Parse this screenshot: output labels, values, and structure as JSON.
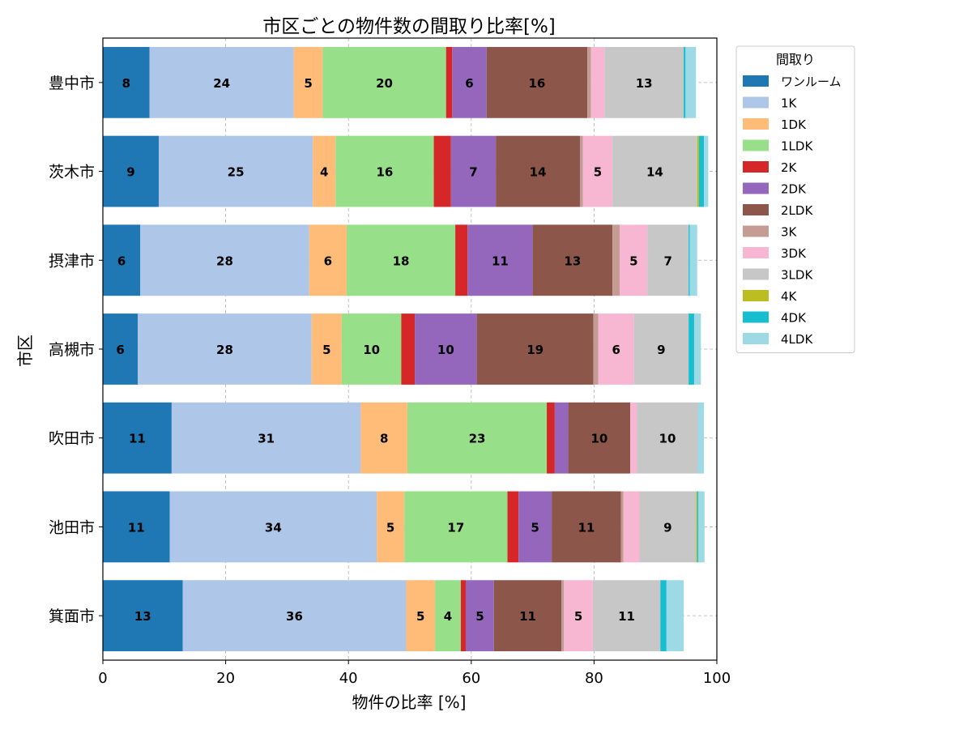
{
  "chart_data": {
    "type": "bar",
    "orientation": "horizontal",
    "stacked": true,
    "title": "市区ごとの物件数の間取り比率[%]",
    "xlabel": "物件の比率 [%]",
    "ylabel": "市区",
    "xlim": [
      0,
      100
    ],
    "xticks": [
      "0",
      "20",
      "40",
      "60",
      "80",
      "100"
    ],
    "grid": true,
    "legend_title": "間取り",
    "legend_position": "outside-top-right",
    "categories": [
      "豊中市",
      "茨木市",
      "摂津市",
      "高槻市",
      "吹田市",
      "池田市",
      "箕面市"
    ],
    "series": [
      {
        "name": "ワンルーム",
        "color": "#1f77b4",
        "values": [
          7.6,
          9.1,
          6.1,
          5.7,
          11.2,
          10.9,
          13.0
        ]
      },
      {
        "name": "1K",
        "color": "#aec7e8",
        "values": [
          23.5,
          25.1,
          27.5,
          28.3,
          30.8,
          33.7,
          36.4
        ]
      },
      {
        "name": "1DK",
        "color": "#ffbb78",
        "values": [
          4.7,
          3.7,
          6.1,
          4.9,
          7.6,
          4.5,
          4.7
        ]
      },
      {
        "name": "1LDK",
        "color": "#98df8a",
        "values": [
          20.1,
          16.0,
          17.7,
          9.7,
          22.7,
          16.8,
          4.2
        ]
      },
      {
        "name": "2K",
        "color": "#d62728",
        "values": [
          1.0,
          2.8,
          2.0,
          2.2,
          1.3,
          1.8,
          0.8
        ]
      },
      {
        "name": "2DK",
        "color": "#9467bd",
        "values": [
          5.6,
          7.3,
          10.6,
          10.1,
          2.2,
          5.4,
          4.6
        ]
      },
      {
        "name": "2LDK",
        "color": "#8c564b",
        "values": [
          16.4,
          13.7,
          13.0,
          19.0,
          10.1,
          11.3,
          11.0
        ]
      },
      {
        "name": "3K",
        "color": "#c49c94",
        "values": [
          0.6,
          0.5,
          1.2,
          0.8,
          0.0,
          0.4,
          0.4
        ]
      },
      {
        "name": "3DK",
        "color": "#f7b6d2",
        "values": [
          2.2,
          4.8,
          4.5,
          5.8,
          1.1,
          2.6,
          4.7
        ]
      },
      {
        "name": "3LDK",
        "color": "#c7c7c7",
        "values": [
          12.9,
          13.8,
          6.7,
          8.9,
          9.9,
          9.2,
          11.0
        ]
      },
      {
        "name": "4K",
        "color": "#bcbd22",
        "values": [
          0.0,
          0.3,
          0.0,
          0.0,
          0.0,
          0.2,
          0.0
        ]
      },
      {
        "name": "4DK",
        "color": "#17becf",
        "values": [
          0.3,
          0.8,
          0.2,
          0.9,
          0.0,
          0.2,
          1.0
        ]
      },
      {
        "name": "4LDK",
        "color": "#9edae5",
        "values": [
          1.7,
          0.7,
          1.2,
          1.1,
          1.0,
          1.0,
          2.8
        ]
      }
    ]
  }
}
